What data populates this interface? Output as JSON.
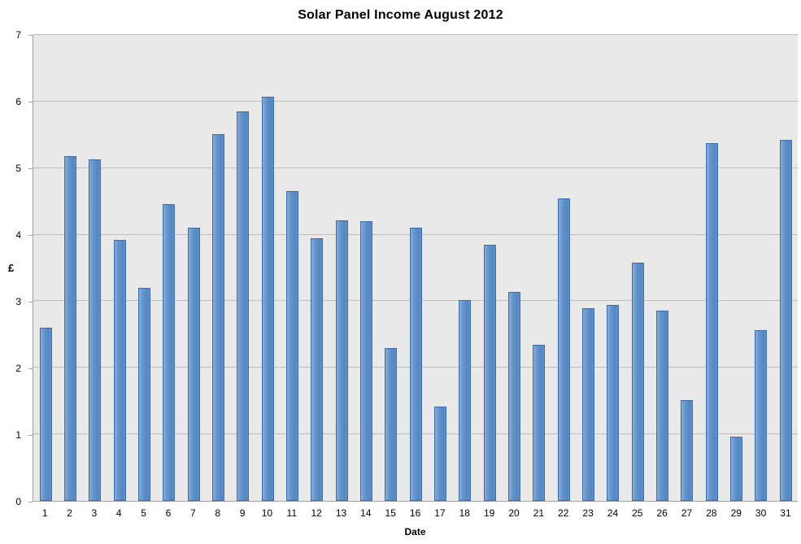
{
  "chart_data": {
    "type": "bar",
    "title": "Solar Panel Income August 2012",
    "xlabel": "Date",
    "ylabel": "£",
    "ylim": [
      0,
      7
    ],
    "yticks": [
      0,
      1,
      2,
      3,
      4,
      5,
      6,
      7
    ],
    "grid": true,
    "legend": false,
    "categories": [
      "1",
      "2",
      "3",
      "4",
      "5",
      "6",
      "7",
      "8",
      "9",
      "10",
      "11",
      "12",
      "13",
      "14",
      "15",
      "16",
      "17",
      "18",
      "19",
      "20",
      "21",
      "22",
      "23",
      "24",
      "25",
      "26",
      "27",
      "28",
      "29",
      "30",
      "31"
    ],
    "values": [
      2.6,
      5.18,
      5.13,
      3.92,
      3.2,
      4.46,
      4.1,
      5.51,
      5.85,
      6.07,
      4.66,
      3.95,
      4.22,
      4.2,
      2.3,
      4.11,
      1.42,
      3.02,
      3.85,
      3.14,
      2.35,
      4.54,
      2.9,
      2.94,
      3.58,
      2.86,
      1.52,
      5.38,
      0.96,
      2.56,
      5.42
    ]
  },
  "colors": {
    "background": "#FFFFFF",
    "plot_bg": "#E9E9E9",
    "gridline": "#BDBDBD",
    "axis_line": "#A0A0A0",
    "bar_fill": "#6093CB",
    "bar_fill_light": "#88ACDB",
    "bar_fill_dark": "#5787C1",
    "bar_border": "#3E6CA4",
    "text": "#000000"
  }
}
